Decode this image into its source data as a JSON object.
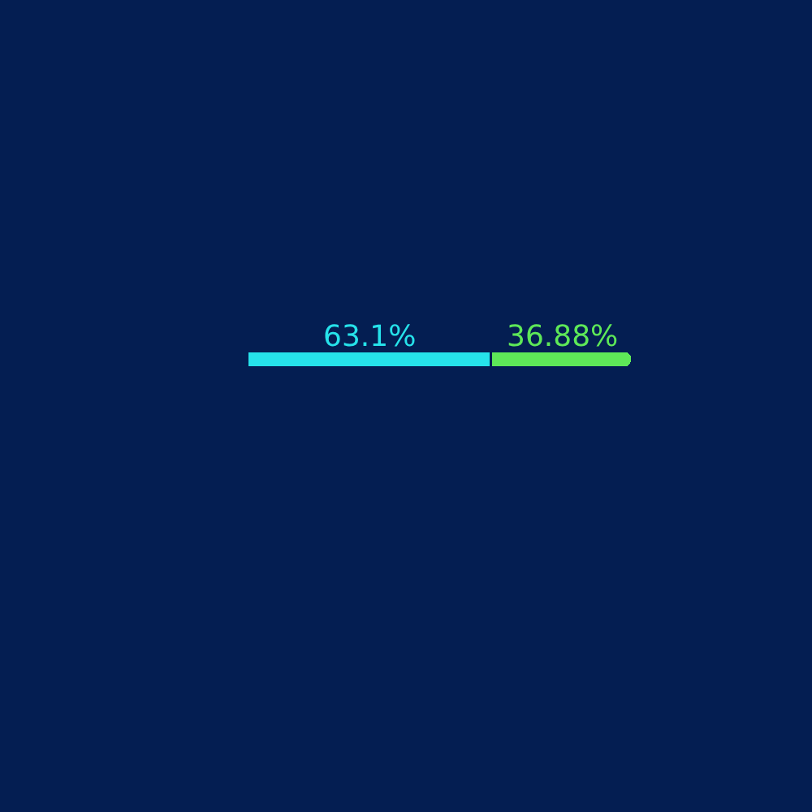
{
  "chart_data": {
    "type": "bar",
    "orientation": "horizontal",
    "stacked": true,
    "tick_labels": false,
    "categories": [
      null
    ],
    "series": [
      {
        "color": "#26e2ea",
        "values": [
          63.1
        ],
        "value_labels": [
          "63.1%"
        ]
      },
      {
        "color": "#5ee858",
        "values": [
          36.88
        ],
        "value_labels": [
          "36.88%"
        ]
      }
    ]
  }
}
